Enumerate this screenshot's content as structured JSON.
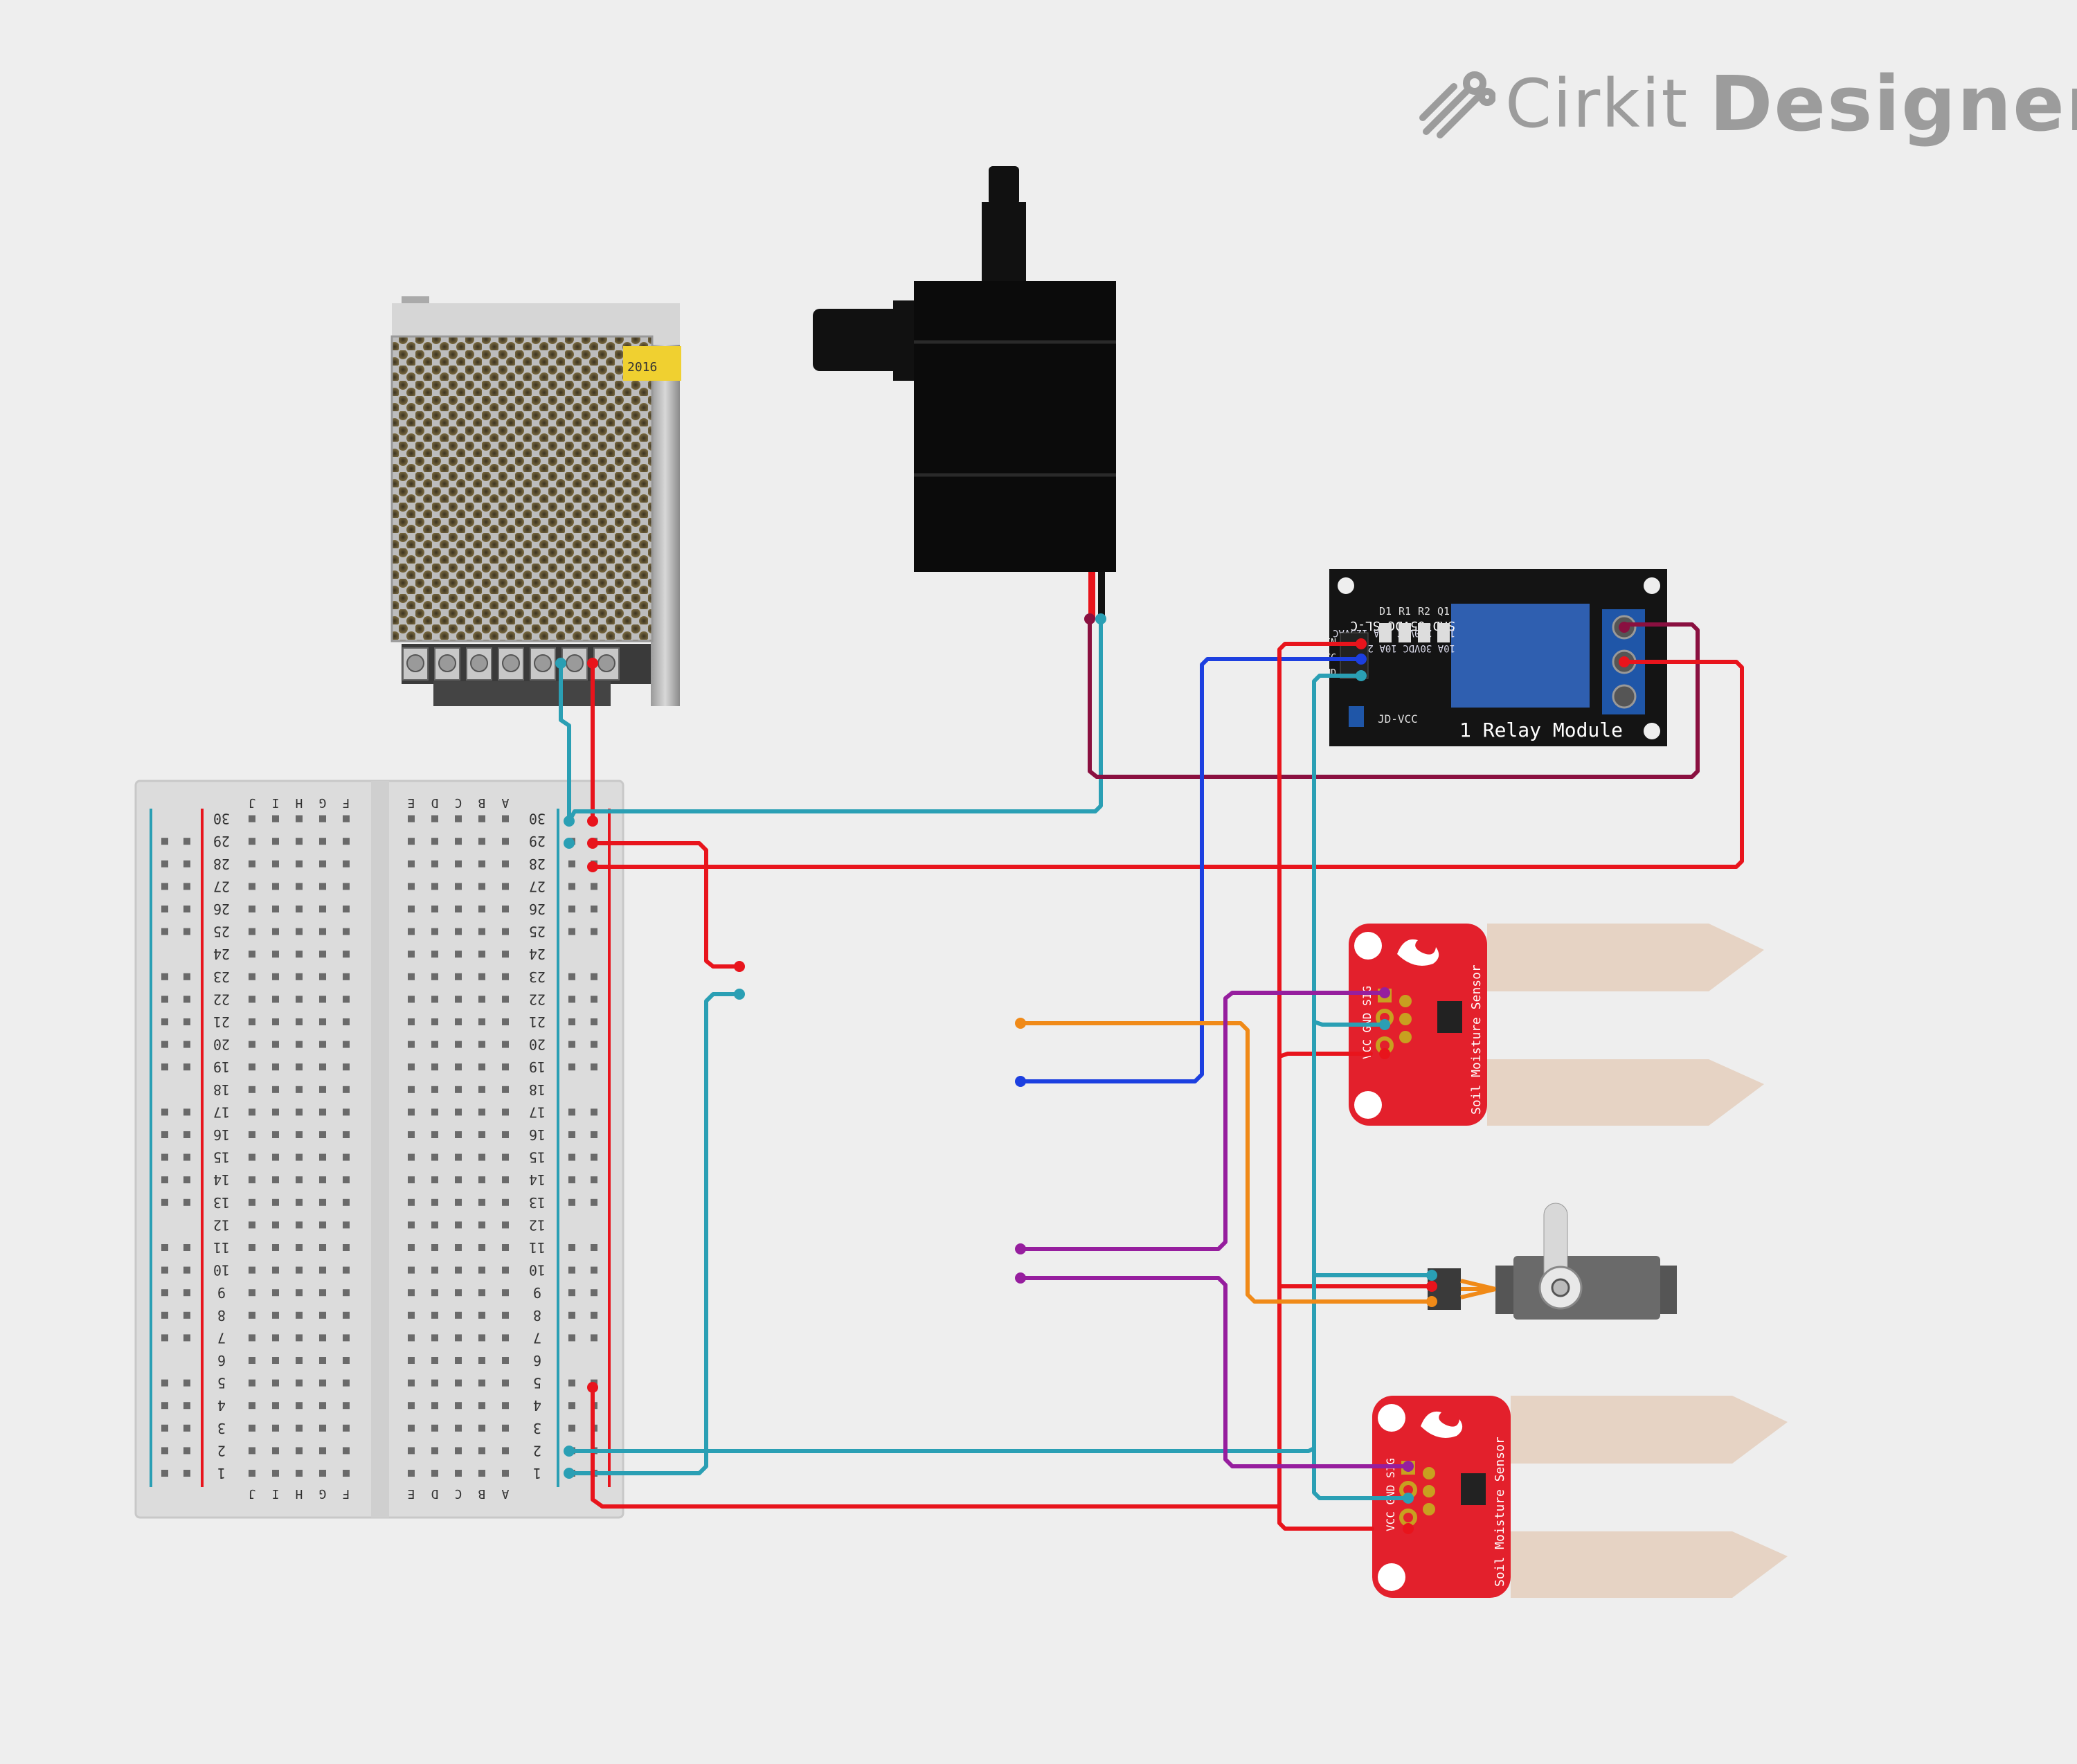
{
  "brand": {
    "name_light": "Cirkit",
    "name_bold": "Designer",
    "icon": "cirkit-logo-icon"
  },
  "components": {
    "power_supply": {
      "label_sticker": "2016"
    },
    "pump": {},
    "relay": {
      "title": "1 Relay Module",
      "relay_text_1": "SRD-05VDC-SL-C",
      "relay_text_2": "10A 250VAC 10A 125VAC",
      "relay_text_3": "10A 30VDC 10A 28VDC",
      "pins": [
        "IN",
        "VCC",
        "GND"
      ],
      "jumper_label": "JD-VCC",
      "parts": [
        "D1",
        "R1",
        "R2",
        "Q1"
      ]
    },
    "soil_sensor_1": {
      "label": "Soil Moisture Sensor",
      "pins": "VCC GND SIG"
    },
    "soil_sensor_2": {
      "label": "Soil Moisture Sensor",
      "pins": "VCC GND SIG"
    },
    "servo": {}
  },
  "breadboard": {
    "rows": [
      "1",
      "2",
      "3",
      "4",
      "5",
      "6",
      "7",
      "8",
      "9",
      "10",
      "11",
      "12",
      "13",
      "14",
      "15",
      "16",
      "17",
      "18",
      "19",
      "20",
      "21",
      "22",
      "23",
      "24",
      "25",
      "26",
      "27",
      "28",
      "29",
      "30"
    ],
    "cols_left": [
      "F",
      "G",
      "H",
      "I",
      "J"
    ],
    "cols_right": [
      "A",
      "B",
      "C",
      "D",
      "E"
    ]
  },
  "wire_colors": {
    "red": "#e8141c",
    "teal": "#2a9fb4",
    "blue": "#1c3fe0",
    "orange": "#f08a18",
    "purple": "#961e9e",
    "maroon": "#8a1040"
  }
}
